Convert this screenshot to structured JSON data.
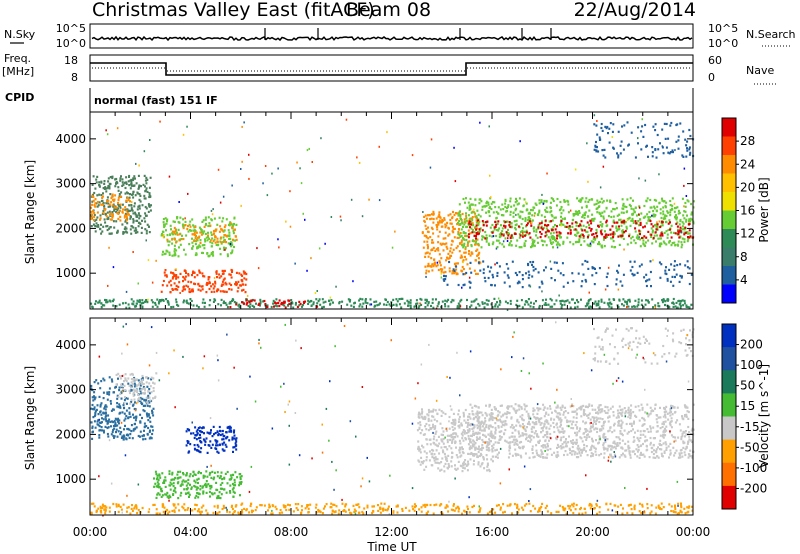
{
  "header": {
    "title": "Christmas Valley East (fitACF)",
    "beam": "Beam 08",
    "date": "22/Aug/2014"
  },
  "top_panels": {
    "nsky_label": "N.Sky",
    "nsearch_label": "N.Search",
    "noise_ticks": [
      "10^5",
      "10^0"
    ],
    "freq_label": "Freq.",
    "freq_unit": "[MHz]",
    "freq_ticks": [
      "18",
      "8"
    ],
    "nave_label": "Nave",
    "nave_ticks": [
      "60",
      "0"
    ],
    "cpid_label": "CPID",
    "cpid_text": "normal (fast) 151 IF"
  },
  "chart_data": [
    {
      "type": "heatmap",
      "panel": "power",
      "ylabel": "Slant Range [km]",
      "yticks": [
        1000,
        2000,
        3000,
        4000
      ],
      "ylim": [
        200,
        4600
      ],
      "xlim_hours": [
        0,
        24
      ],
      "colorbar_label": "Power [dB]",
      "colorbar_ticks": [
        "28",
        "24",
        "20",
        "16",
        "12",
        "8",
        "4"
      ],
      "colorbar_colors": [
        "#e00000",
        "#ff4000",
        "#ff8c00",
        "#ffc000",
        "#f0e000",
        "#66cc33",
        "#2e8b57",
        "#3a7d6b",
        "#1f5f9f",
        "#0000ff"
      ],
      "regions": [
        {
          "t0": 0.0,
          "t1": 2.4,
          "r0": 1900,
          "r1": 3200,
          "color": "#4a7f5a",
          "density": 0.55
        },
        {
          "t0": 0.0,
          "t1": 1.6,
          "r0": 2200,
          "r1": 2800,
          "color": "#ff8c00",
          "density": 0.45
        },
        {
          "t0": 2.8,
          "t1": 5.8,
          "r0": 1400,
          "r1": 2300,
          "color": "#66cc33",
          "density": 0.45
        },
        {
          "t0": 3.0,
          "t1": 5.8,
          "r0": 1700,
          "r1": 2100,
          "color": "#ff8c00",
          "density": 0.35
        },
        {
          "t0": 2.8,
          "t1": 6.2,
          "r0": 600,
          "r1": 1100,
          "color": "#ff4000",
          "density": 0.55
        },
        {
          "t0": 0.0,
          "t1": 24.0,
          "r0": 250,
          "r1": 450,
          "color": "#2e8b57",
          "density": 0.55
        },
        {
          "t0": 5.5,
          "t1": 9.0,
          "r0": 250,
          "r1": 420,
          "color": "#e00000",
          "density": 0.35
        },
        {
          "t0": 13.2,
          "t1": 15.5,
          "r0": 1000,
          "r1": 2400,
          "color": "#ff8c00",
          "density": 0.45
        },
        {
          "t0": 14.6,
          "t1": 24.0,
          "r0": 1600,
          "r1": 2700,
          "color": "#66cc33",
          "density": 0.45
        },
        {
          "t0": 15.0,
          "t1": 24.0,
          "r0": 1800,
          "r1": 2200,
          "color": "#e00000",
          "density": 0.3
        },
        {
          "t0": 14.0,
          "t1": 24.0,
          "r0": 700,
          "r1": 1300,
          "color": "#1f5f9f",
          "density": 0.15
        },
        {
          "t0": 20.0,
          "t1": 24.0,
          "r0": 3600,
          "r1": 4400,
          "color": "#1f5f9f",
          "density": 0.18
        }
      ]
    },
    {
      "type": "heatmap",
      "panel": "velocity",
      "ylabel": "Slant Range [km]",
      "yticks": [
        1000,
        2000,
        3000,
        4000
      ],
      "ylim": [
        200,
        4600
      ],
      "xlim_hours": [
        0,
        24
      ],
      "xlabel": "Time UT",
      "xticks": [
        "00:00",
        "04:00",
        "08:00",
        "12:00",
        "16:00",
        "20:00",
        "00:00"
      ],
      "colorbar_label": "Velocity [m s^-1]",
      "colorbar_ticks": [
        "200",
        "100",
        "50",
        "15",
        "-15",
        "-50",
        "-100",
        "-200"
      ],
      "colorbar_colors": [
        "#0030c0",
        "#2050a0",
        "#1a7a5a",
        "#44bb33",
        "#c8c8c8",
        "#ffa000",
        "#ff7000",
        "#e00000"
      ],
      "regions": [
        {
          "t0": 0.0,
          "t1": 2.5,
          "r0": 1900,
          "r1": 3300,
          "color": "#2a6fa0",
          "density": 0.5
        },
        {
          "t0": 1.0,
          "t1": 2.6,
          "r0": 2700,
          "r1": 3400,
          "color": "#c8c8c8",
          "density": 0.45
        },
        {
          "t0": 3.8,
          "t1": 5.8,
          "r0": 1600,
          "r1": 2200,
          "color": "#0030c0",
          "density": 0.6
        },
        {
          "t0": 2.5,
          "t1": 6.0,
          "r0": 600,
          "r1": 1200,
          "color": "#44bb33",
          "density": 0.6
        },
        {
          "t0": 0.0,
          "t1": 24.0,
          "r0": 250,
          "r1": 480,
          "color": "#ffa000",
          "density": 0.45
        },
        {
          "t0": 13.0,
          "t1": 16.0,
          "r0": 1200,
          "r1": 2600,
          "color": "#c8c8c8",
          "density": 0.5
        },
        {
          "t0": 15.0,
          "t1": 24.0,
          "r0": 1500,
          "r1": 2700,
          "color": "#c8c8c8",
          "density": 0.55
        },
        {
          "t0": 20.0,
          "t1": 24.0,
          "r0": 3600,
          "r1": 4400,
          "color": "#c8c8c8",
          "density": 0.15
        }
      ]
    }
  ]
}
